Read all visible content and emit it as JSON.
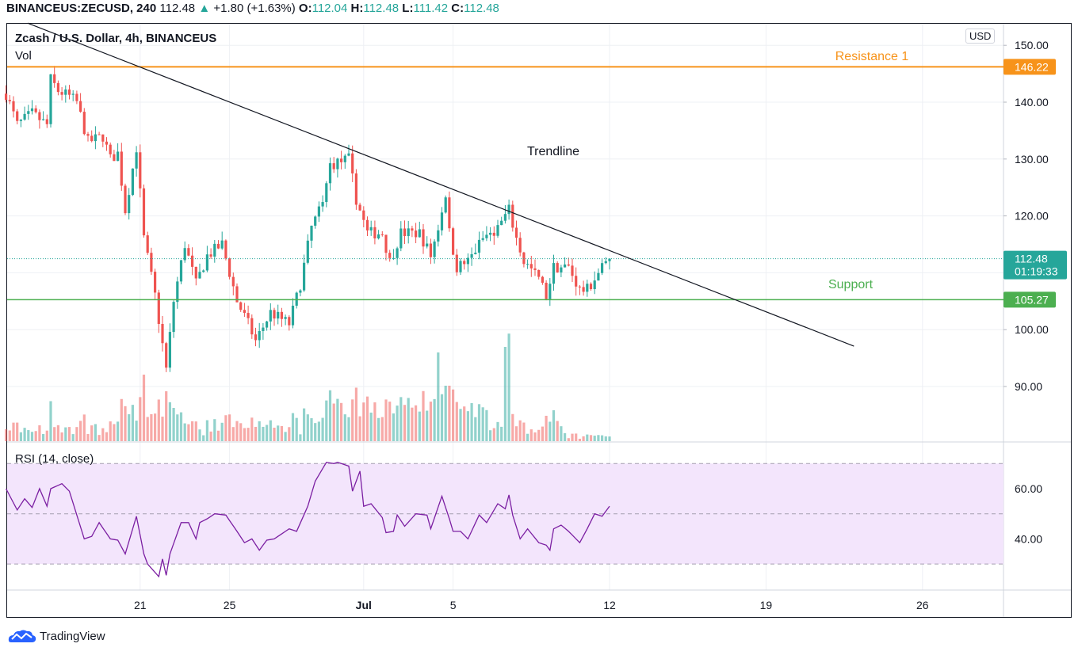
{
  "header": {
    "symbol": "BINANCEUS:ZECUSD, 240",
    "last": "112.48",
    "change": "+1.80 (+1.63%)",
    "o_label": "O:",
    "o": "112.04",
    "h_label": "H:",
    "h": "112.48",
    "l_label": "L:",
    "l": "111.42",
    "c_label": "C:",
    "c": "112.48"
  },
  "legend": {
    "title": "Zcash / U.S. Dollar, 4h, BINANCEUS",
    "vol": "Vol",
    "rsi": "RSI (14, close)"
  },
  "currency_badge": "USD",
  "price_axis": {
    "ticks": [
      "150.00",
      "140.00",
      "130.00",
      "120.00",
      "100.00",
      "90.00"
    ],
    "tick_values": [
      150,
      140,
      130,
      120,
      100,
      90
    ]
  },
  "rsi_axis": {
    "ticks": [
      "60.00",
      "40.00"
    ],
    "tick_values": [
      60,
      40
    ],
    "bands": [
      70,
      50,
      30
    ]
  },
  "time_axis": {
    "labels": [
      "21",
      "25",
      "Jul",
      "5",
      "12",
      "19",
      "26"
    ],
    "days_since_jun15": [
      6,
      10,
      16,
      20,
      27,
      34,
      41
    ]
  },
  "current_price": {
    "value": 112.48,
    "label": "112.48",
    "countdown": "01:19:33"
  },
  "annotations": {
    "resistance": {
      "label": "Resistance 1",
      "price": 146.22,
      "price_label": "146.22",
      "color": "#f7931a"
    },
    "support": {
      "label": "Support",
      "price": 105.27,
      "price_label": "105.27",
      "color": "#4caf50"
    },
    "trendline": {
      "label": "Trendline",
      "start": {
        "candle": 5.8,
        "price": 153.9
      },
      "end": {
        "candle": 227.6,
        "price": 97.1
      }
    }
  },
  "colors": {
    "up": "#26a69a",
    "down": "#ef5350",
    "rsi": "#7b1fa2",
    "rsi_band": "#f3e5fc",
    "current": "#26a69a"
  },
  "brand": "TradingView",
  "chart_data": {
    "type": "candlestick",
    "title": "Zcash / U.S. Dollar, 4h, BINANCEUS",
    "candle_count": 163,
    "ylim": [
      80,
      153
    ],
    "close_anchors": [
      [
        0,
        141.5
      ],
      [
        3,
        136
      ],
      [
        7,
        138
      ],
      [
        11,
        136
      ],
      [
        12,
        144
      ],
      [
        14,
        142
      ],
      [
        17,
        141
      ],
      [
        19,
        140
      ],
      [
        22,
        133
      ],
      [
        26,
        134
      ],
      [
        28,
        130
      ],
      [
        30,
        131
      ],
      [
        32,
        121
      ],
      [
        35,
        132
      ],
      [
        37,
        116
      ],
      [
        40,
        106
      ],
      [
        43,
        93
      ],
      [
        45,
        105
      ],
      [
        48,
        115
      ],
      [
        51,
        108
      ],
      [
        54,
        113
      ],
      [
        58,
        115
      ],
      [
        62,
        105
      ],
      [
        65,
        101
      ],
      [
        67,
        98
      ],
      [
        71,
        103
      ],
      [
        76,
        101
      ],
      [
        79,
        108
      ],
      [
        82,
        118
      ],
      [
        85,
        122
      ],
      [
        87,
        129
      ],
      [
        92,
        130
      ],
      [
        94,
        123
      ],
      [
        97,
        117
      ],
      [
        101,
        117
      ],
      [
        103,
        112
      ],
      [
        106,
        117
      ],
      [
        111,
        117
      ],
      [
        114,
        113
      ],
      [
        116,
        118
      ],
      [
        118,
        124
      ],
      [
        119,
        117
      ],
      [
        121,
        111
      ],
      [
        124,
        112
      ],
      [
        128,
        116
      ],
      [
        132,
        118
      ],
      [
        135,
        121
      ],
      [
        137,
        116
      ],
      [
        139,
        112
      ],
      [
        143,
        109
      ],
      [
        145,
        106
      ],
      [
        147,
        111
      ],
      [
        151,
        111
      ],
      [
        154,
        107
      ],
      [
        156,
        107
      ],
      [
        160,
        111
      ],
      [
        162,
        112.48
      ]
    ],
    "volume_spikes": [
      [
        37,
        0.6
      ],
      [
        43,
        0.45
      ],
      [
        45,
        0.3
      ],
      [
        116,
        0.8
      ],
      [
        118,
        0.5
      ],
      [
        134,
        0.85
      ],
      [
        135,
        0.97
      ]
    ],
    "rsi_anchors": [
      [
        0,
        60
      ],
      [
        3,
        51.5
      ],
      [
        5,
        56
      ],
      [
        7,
        52.5
      ],
      [
        9,
        60
      ],
      [
        11,
        53
      ],
      [
        12,
        60
      ],
      [
        15,
        62
      ],
      [
        17,
        59
      ],
      [
        21,
        40
      ],
      [
        23,
        41
      ],
      [
        25,
        46.5
      ],
      [
        28,
        40
      ],
      [
        30,
        39.5
      ],
      [
        32,
        34
      ],
      [
        35,
        49
      ],
      [
        37,
        34
      ],
      [
        38,
        30
      ],
      [
        41,
        25
      ],
      [
        42,
        32
      ],
      [
        43,
        25.5
      ],
      [
        44,
        34
      ],
      [
        47,
        46.5
      ],
      [
        49,
        46.5
      ],
      [
        51,
        40
      ],
      [
        52,
        46.5
      ],
      [
        54,
        48
      ],
      [
        56,
        50
      ],
      [
        59,
        49.5
      ],
      [
        62,
        43
      ],
      [
        64,
        38.5
      ],
      [
        66,
        40
      ],
      [
        68,
        35.5
      ],
      [
        70,
        39.5
      ],
      [
        72,
        40
      ],
      [
        76,
        44
      ],
      [
        78,
        43
      ],
      [
        81,
        53
      ],
      [
        83,
        63
      ],
      [
        86,
        70.5
      ],
      [
        88,
        70
      ],
      [
        89,
        70.5
      ],
      [
        92,
        69
      ],
      [
        93,
        59
      ],
      [
        95,
        67
      ],
      [
        96,
        53
      ],
      [
        98,
        54
      ],
      [
        101,
        48.5
      ],
      [
        102,
        42.5
      ],
      [
        104,
        43
      ],
      [
        105,
        49.5
      ],
      [
        107,
        45
      ],
      [
        110,
        50
      ],
      [
        113,
        49.5
      ],
      [
        114,
        44
      ],
      [
        117,
        57
      ],
      [
        119,
        48
      ],
      [
        120,
        43
      ],
      [
        122,
        43
      ],
      [
        124,
        40
      ],
      [
        127,
        49.5
      ],
      [
        129,
        46.5
      ],
      [
        132,
        54
      ],
      [
        134,
        52
      ],
      [
        135,
        57.5
      ],
      [
        136,
        49.5
      ],
      [
        138,
        40
      ],
      [
        140,
        44
      ],
      [
        143,
        38.5
      ],
      [
        145,
        37.5
      ],
      [
        146,
        35.5
      ],
      [
        147,
        44
      ],
      [
        149,
        45.5
      ],
      [
        151,
        43
      ],
      [
        154,
        38.5
      ],
      [
        156,
        44
      ],
      [
        158,
        50
      ],
      [
        160,
        49
      ],
      [
        162,
        53
      ]
    ]
  }
}
